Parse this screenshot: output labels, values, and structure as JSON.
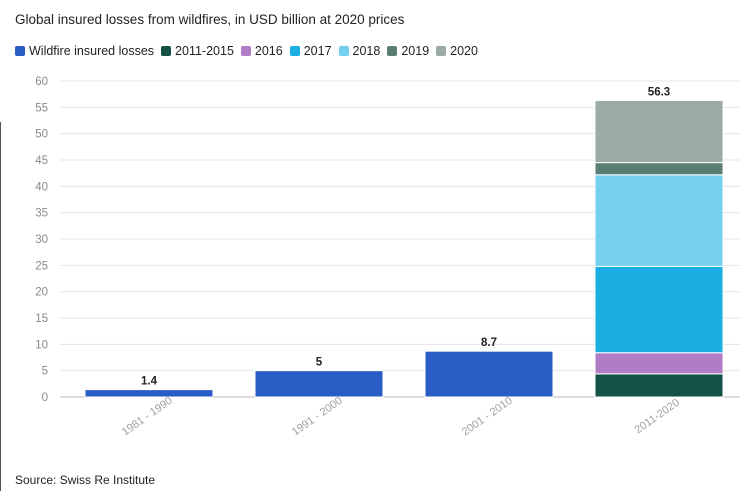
{
  "title": "Global insured losses from wildfires, in USD billion at 2020 prices",
  "source": "Source: Swiss Re Institute",
  "legend": [
    {
      "label": "Wildfire insured losses",
      "color": "#2a5cc6"
    },
    {
      "label": "2011-2015",
      "color": "#145245"
    },
    {
      "label": "2016",
      "color": "#b07cc6"
    },
    {
      "label": "2017",
      "color": "#1aaee2"
    },
    {
      "label": "2018",
      "color": "#74d0ee"
    },
    {
      "label": "2019",
      "color": "#5b7c72"
    },
    {
      "label": "2020",
      "color": "#9aaaa6"
    }
  ],
  "chart_data": {
    "type": "bar",
    "stacked": true,
    "categories": [
      "1981 - 1990",
      "1991 - 2000",
      "2001 - 2010",
      "2011-2020"
    ],
    "series": [
      {
        "name": "Wildfire insured losses",
        "color": "#2a5cc6",
        "values": [
          1.4,
          5,
          8.7,
          0
        ]
      },
      {
        "name": "2011-2015",
        "color": "#145245",
        "values": [
          0,
          0,
          0,
          4.4
        ]
      },
      {
        "name": "2016",
        "color": "#b07cc6",
        "values": [
          0,
          0,
          0,
          4.0
        ]
      },
      {
        "name": "2017",
        "color": "#1aaee2",
        "values": [
          0,
          0,
          0,
          16.4
        ]
      },
      {
        "name": "2018",
        "color": "#74d0ee",
        "values": [
          0,
          0,
          0,
          17.4
        ]
      },
      {
        "name": "2019",
        "color": "#5b7c72",
        "values": [
          0,
          0,
          0,
          2.3
        ]
      },
      {
        "name": "2020",
        "color": "#9aaaa6",
        "values": [
          0,
          0,
          0,
          11.8
        ]
      }
    ],
    "totals": [
      "1.4",
      "5",
      "8.7",
      "56.3"
    ],
    "yticks": [
      0,
      5,
      10,
      15,
      20,
      25,
      30,
      35,
      40,
      45,
      50,
      55,
      60
    ],
    "ylim": [
      0,
      60
    ],
    "grid": true,
    "legend_position": "top-left"
  }
}
